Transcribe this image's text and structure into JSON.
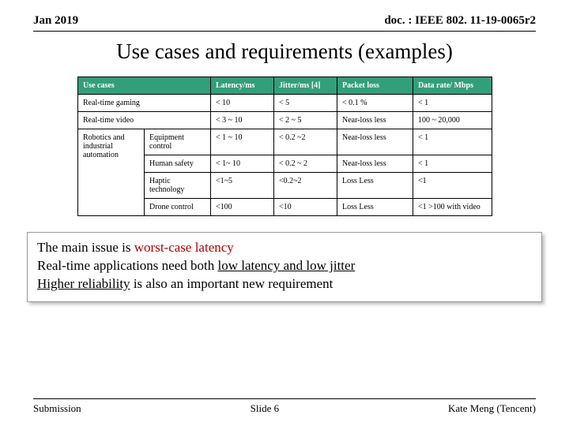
{
  "header": {
    "date": "Jan 2019",
    "docref": "doc. : IEEE 802. 11-19-0065r2"
  },
  "title": "Use cases and requirements (examples)",
  "table": {
    "headers": {
      "usecases": "Use cases",
      "latency": "Latency/ms",
      "jitter": "Jitter/ms [4]",
      "packetloss": "Packet loss",
      "datarate": "Data rate/ Mbps"
    },
    "row_gaming": {
      "name": "Real-time gaming",
      "latency": "< 10",
      "jitter": "< 5",
      "packetloss": "< 0.1 %",
      "datarate": "< 1"
    },
    "row_video": {
      "name": "Real-time video",
      "latency": "< 3 ~ 10",
      "jitter": "< 2 ~ 5",
      "packetloss": "Near-loss less",
      "datarate": "100 ~ 20,000"
    },
    "group_label": "Robotics and industrial automation",
    "row_equip": {
      "name": "Equipment control",
      "latency": "< 1 ~ 10",
      "jitter": "< 0.2 ~2",
      "packetloss": "Near-loss less",
      "datarate": "< 1"
    },
    "row_safety": {
      "name": "Human safety",
      "latency": "< 1~ 10",
      "jitter": "< 0.2 ~ 2",
      "packetloss": "Near-loss less",
      "datarate": "< 1"
    },
    "row_haptic": {
      "name": "Haptic technology",
      "latency": "<1~5",
      "jitter": "<0.2~2",
      "packetloss": "Loss Less",
      "datarate": "<1"
    },
    "row_drone": {
      "name": "Drone control",
      "latency": "<100",
      "jitter": "<10",
      "packetloss": "Loss Less",
      "datarate": "<1 >100 with video"
    },
    "colors": {
      "header_bg": "#339e7a",
      "header_text": "#ffffff",
      "border": "#000000"
    }
  },
  "callout": {
    "line1_a": "The main issue is ",
    "line1_b": "worst-case latency",
    "line2_a": "Real-time applications need both ",
    "line2_b": "low latency and low jitter",
    "line3_a": "Higher reliability",
    "line3_b": " is also an important new requirement"
  },
  "footer": {
    "left": "Submission",
    "center": "Slide 6",
    "right": "Kate Meng (Tencent)"
  }
}
